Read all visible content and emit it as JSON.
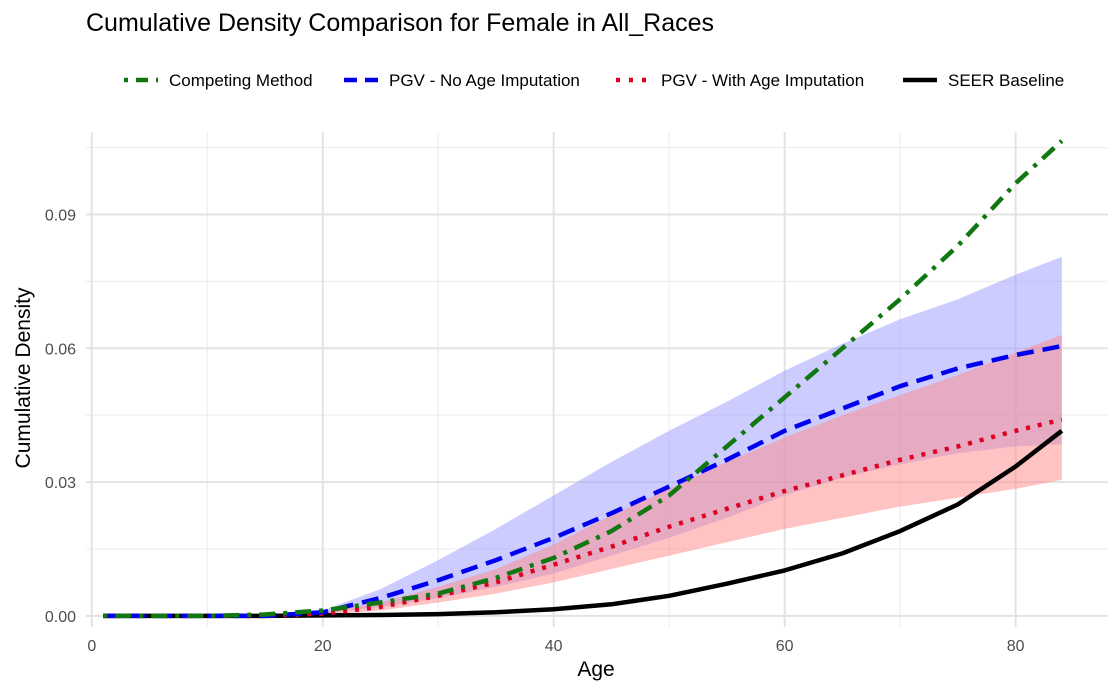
{
  "chart_data": {
    "type": "line",
    "title": "Cumulative Density Comparison for Female in All_Races",
    "xlabel": "Age",
    "ylabel": "Cumulative Density",
    "xlim": [
      -0.5,
      88
    ],
    "ylim": [
      -0.0025,
      0.1085
    ],
    "x_ticks": [
      0,
      20,
      40,
      60,
      80
    ],
    "x_tick_labels": [
      "0",
      "20",
      "40",
      "60",
      "80"
    ],
    "x_minor": [
      10,
      30,
      50,
      70
    ],
    "y_ticks": [
      0.0,
      0.03,
      0.06,
      0.09
    ],
    "y_tick_labels": [
      "0.00",
      "0.03",
      "0.06",
      "0.09"
    ],
    "y_minor": [
      0.015,
      0.045,
      0.075,
      0.105
    ],
    "grid": true,
    "legend_position": "top",
    "series": [
      {
        "name": "Competing Method",
        "color": "#117711",
        "dash": "dotdash",
        "x": [
          1,
          10,
          15,
          20,
          25,
          30,
          35,
          40,
          45,
          50,
          55,
          60,
          65,
          70,
          75,
          80,
          84
        ],
        "y": [
          0.0,
          0.0,
          0.0003,
          0.0012,
          0.003,
          0.005,
          0.0085,
          0.013,
          0.019,
          0.027,
          0.038,
          0.049,
          0.06,
          0.071,
          0.083,
          0.097,
          0.1065
        ]
      },
      {
        "name": "PGV - No Age Imputation",
        "color": "#0000ee",
        "dash": "dashed",
        "band_color": "#9999ff",
        "x": [
          1,
          10,
          15,
          20,
          25,
          30,
          35,
          40,
          45,
          50,
          55,
          60,
          65,
          70,
          75,
          80,
          84
        ],
        "y": [
          0.0,
          0.0,
          0.0,
          0.0008,
          0.004,
          0.008,
          0.0125,
          0.0175,
          0.023,
          0.029,
          0.035,
          0.0415,
          0.0465,
          0.0515,
          0.0555,
          0.0585,
          0.0605
        ],
        "lower": [
          0.0,
          0.0,
          0.0,
          0.0005,
          0.002,
          0.004,
          0.0065,
          0.0095,
          0.0135,
          0.0175,
          0.022,
          0.027,
          0.031,
          0.034,
          0.0365,
          0.038,
          0.0385
        ],
        "upper": [
          0.0,
          0.0,
          0.0001,
          0.0012,
          0.006,
          0.0125,
          0.0195,
          0.027,
          0.0345,
          0.0415,
          0.048,
          0.055,
          0.061,
          0.0665,
          0.071,
          0.0765,
          0.0805
        ]
      },
      {
        "name": "PGV - With Age Imputation",
        "color": "#dd0022",
        "dash": "dotted",
        "band_color": "#ff8888",
        "x": [
          1,
          10,
          15,
          20,
          25,
          30,
          35,
          40,
          45,
          50,
          55,
          60,
          65,
          70,
          75,
          80,
          84
        ],
        "y": [
          0.0,
          0.0,
          0.0,
          0.0005,
          0.002,
          0.0045,
          0.0075,
          0.0115,
          0.0155,
          0.02,
          0.024,
          0.028,
          0.0315,
          0.035,
          0.038,
          0.0415,
          0.044
        ],
        "lower": [
          0.0,
          0.0,
          0.0,
          0.0003,
          0.0012,
          0.003,
          0.005,
          0.0075,
          0.0105,
          0.0135,
          0.0165,
          0.0195,
          0.022,
          0.0245,
          0.0265,
          0.0285,
          0.0305
        ],
        "upper": [
          0.0,
          0.0,
          0.0001,
          0.0008,
          0.003,
          0.0065,
          0.0105,
          0.016,
          0.0225,
          0.0285,
          0.0345,
          0.04,
          0.045,
          0.0495,
          0.054,
          0.059,
          0.063
        ]
      },
      {
        "name": "SEER Baseline",
        "color": "#000000",
        "dash": "solid",
        "x": [
          1,
          10,
          15,
          20,
          25,
          30,
          35,
          40,
          45,
          50,
          55,
          60,
          65,
          70,
          75,
          80,
          84
        ],
        "y": [
          0.0,
          0.0,
          0.0,
          0.0001,
          0.0002,
          0.0004,
          0.0008,
          0.0015,
          0.0026,
          0.0045,
          0.0072,
          0.0102,
          0.014,
          0.019,
          0.025,
          0.0335,
          0.0415
        ]
      }
    ]
  }
}
